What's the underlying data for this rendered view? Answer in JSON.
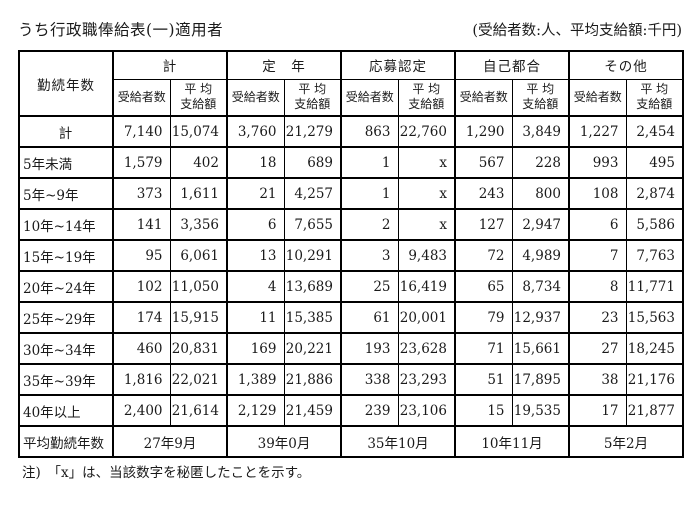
{
  "title": "うち行政職俸給表(一)適用者",
  "unit_note": "(受給者数:人、平均支給額:千円)",
  "table": {
    "row_header": "勤続年数",
    "groups": [
      {
        "label": "計"
      },
      {
        "label": "定　年"
      },
      {
        "label": "応募認定"
      },
      {
        "label": "自己都合"
      },
      {
        "label": "その他"
      }
    ],
    "sub_headers": {
      "recipients": "受給者数",
      "average": "平 均\n支給額"
    },
    "rows": [
      {
        "label": "計",
        "align": "center",
        "cells": [
          "7,140",
          "15,074",
          "3,760",
          "21,279",
          "863",
          "22,760",
          "1,290",
          "3,849",
          "1,227",
          "2,454"
        ]
      },
      {
        "label": "5年未満",
        "align": "left",
        "cells": [
          "1,579",
          "402",
          "18",
          "689",
          "1",
          "x",
          "567",
          "228",
          "993",
          "495"
        ]
      },
      {
        "label": "5年~9年",
        "align": "left",
        "cells": [
          "373",
          "1,611",
          "21",
          "4,257",
          "1",
          "x",
          "243",
          "800",
          "108",
          "2,874"
        ]
      },
      {
        "label": "10年~14年",
        "align": "left",
        "cells": [
          "141",
          "3,356",
          "6",
          "7,655",
          "2",
          "x",
          "127",
          "2,947",
          "6",
          "5,586"
        ]
      },
      {
        "label": "15年~19年",
        "align": "left",
        "cells": [
          "95",
          "6,061",
          "13",
          "10,291",
          "3",
          "9,483",
          "72",
          "4,989",
          "7",
          "7,763"
        ]
      },
      {
        "label": "20年~24年",
        "align": "left",
        "cells": [
          "102",
          "11,050",
          "4",
          "13,689",
          "25",
          "16,419",
          "65",
          "8,734",
          "8",
          "11,771"
        ]
      },
      {
        "label": "25年~29年",
        "align": "left",
        "cells": [
          "174",
          "15,915",
          "11",
          "15,385",
          "61",
          "20,001",
          "79",
          "12,937",
          "23",
          "15,563"
        ]
      },
      {
        "label": "30年~34年",
        "align": "left",
        "cells": [
          "460",
          "20,831",
          "169",
          "20,221",
          "193",
          "23,628",
          "71",
          "15,661",
          "27",
          "18,245"
        ]
      },
      {
        "label": "35年~39年",
        "align": "left",
        "cells": [
          "1,816",
          "22,021",
          "1,389",
          "21,886",
          "338",
          "23,293",
          "51",
          "17,895",
          "38",
          "21,176"
        ]
      },
      {
        "label": "40年以上",
        "align": "left",
        "cells": [
          "2,400",
          "21,614",
          "2,129",
          "21,459",
          "239",
          "23,106",
          "15",
          "19,535",
          "17",
          "21,877"
        ]
      }
    ],
    "average_row": {
      "label": "平均勤続年数",
      "values": [
        "27年9月",
        "39年0月",
        "35年10月",
        "10年11月",
        "5年2月"
      ]
    }
  },
  "footnote": "注)　「x」は、当該数字を秘匿したことを示す。"
}
